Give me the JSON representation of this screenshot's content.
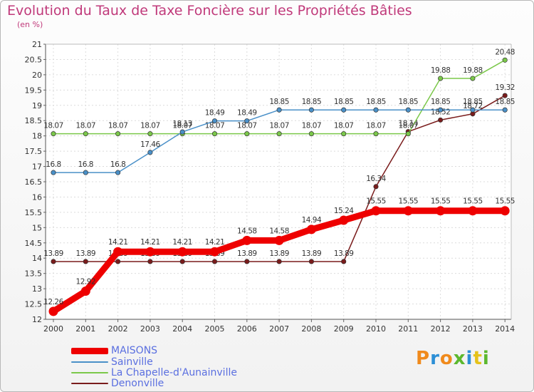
{
  "header": {
    "title": "Evolution du Taux de Taxe Foncière sur les Propriétés Bâties",
    "unit": "(en %)"
  },
  "logo": {
    "text": "Proxiti",
    "colors": [
      "#f08a1c",
      "#2c8fd6",
      "#f08a1c",
      "#5cb82e",
      "#2c8fd6",
      "#e5c21b",
      "#5cb82e"
    ]
  },
  "chart_data": {
    "type": "line",
    "title": "Evolution du Taux de Taxe Foncière sur les Propriétés Bâties",
    "ylabel": "(en %)",
    "xlabel": "",
    "categories": [
      "2000",
      "2001",
      "2002",
      "2003",
      "2004",
      "2005",
      "2006",
      "2007",
      "2008",
      "2009",
      "2010",
      "2011",
      "2012",
      "2013",
      "2014"
    ],
    "ylim": [
      12,
      21
    ],
    "yticks": [
      12,
      12.5,
      13,
      13.5,
      14,
      14.5,
      15,
      15.5,
      16,
      16.5,
      17,
      17.5,
      18,
      18.5,
      19,
      19.5,
      20,
      20.5,
      21
    ],
    "grid": true,
    "legend_position": "bottom-left",
    "series": [
      {
        "name": "Denonville",
        "color": "#7a1c1c",
        "values": [
          13.89,
          13.89,
          13.89,
          13.89,
          13.89,
          13.89,
          13.89,
          13.89,
          13.89,
          13.89,
          16.34,
          18.14,
          18.52,
          18.72,
          19.32
        ],
        "labels": [
          "13.89",
          "13.89",
          "13.89",
          "13.89",
          "13.89",
          "13.89",
          "13.89",
          "13.89",
          "13.89",
          "13.89",
          "16.34",
          "18.14",
          "18.52",
          "18.72",
          "19.32"
        ]
      },
      {
        "name": "La Chapelle-d'Aunainville",
        "color": "#7bc84a",
        "values": [
          18.07,
          18.07,
          18.07,
          18.07,
          18.07,
          18.07,
          18.07,
          18.07,
          18.07,
          18.07,
          18.07,
          18.07,
          19.88,
          19.88,
          20.48
        ],
        "labels": [
          "18.07",
          "18.07",
          "18.07",
          "18.07",
          "18.07",
          "18.07",
          "18.07",
          "18.07",
          "18.07",
          "18.07",
          "18.07",
          "18.07",
          "19.88",
          "19.88",
          "20.48"
        ]
      },
      {
        "name": "Sainville",
        "color": "#4a90c8",
        "values": [
          16.8,
          16.8,
          16.8,
          17.46,
          18.13,
          18.49,
          18.49,
          18.85,
          18.85,
          18.85,
          18.85,
          18.85,
          18.85,
          18.85,
          18.85
        ],
        "labels": [
          "16.8",
          "16.8",
          "16.8",
          "17.46",
          "18.13",
          "18.49",
          "18.49",
          "18.85",
          "18.85",
          "18.85",
          "18.85",
          "18.85",
          "18.85",
          "18.85",
          "18.85"
        ]
      },
      {
        "name": "MAISONS",
        "color": "#ee0000",
        "values": [
          12.26,
          12.92,
          14.21,
          14.21,
          14.21,
          14.21,
          14.58,
          14.58,
          14.94,
          15.24,
          15.55,
          15.55,
          15.55,
          15.55,
          15.55
        ],
        "labels": [
          "12.26",
          "12.92",
          "14.21",
          "14.21",
          "14.21",
          "14.21",
          "14.58",
          "14.58",
          "14.94",
          "15.24",
          "15.55",
          "15.55",
          "15.55",
          "15.55",
          "15.55"
        ]
      }
    ],
    "legend": [
      "MAISONS",
      "Sainville",
      "La Chapelle-d'Aunainville",
      "Denonville"
    ]
  }
}
